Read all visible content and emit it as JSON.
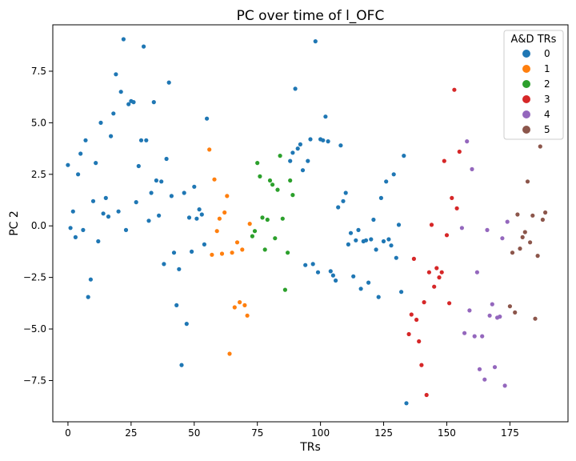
{
  "chart_data": {
    "type": "scatter",
    "title": "PC over time of l_OFC",
    "xlabel": "TRs",
    "ylabel": "PC 2",
    "xlim": [
      -6,
      198
    ],
    "ylim": [
      -9.5,
      9.75
    ],
    "xticks": [
      0,
      25,
      50,
      75,
      100,
      125,
      150,
      175
    ],
    "yticks": [
      -7.5,
      -5.0,
      -2.5,
      0.0,
      2.5,
      5.0,
      7.5
    ],
    "ytick_labels": [
      "−7.5",
      "−5.0",
      "−2.5",
      "0.0",
      "2.5",
      "5.0",
      "7.5"
    ],
    "grid": false,
    "legend": {
      "title": "A&D TRs",
      "location": "top-right",
      "entries": [
        "0",
        "1",
        "2",
        "3",
        "4",
        "5"
      ]
    },
    "series": [
      {
        "name": "0",
        "color": "#1f77b4",
        "points": [
          [
            0,
            2.95
          ],
          [
            1,
            -0.1
          ],
          [
            2,
            0.7
          ],
          [
            3,
            -0.55
          ],
          [
            4,
            2.5
          ],
          [
            5,
            3.5
          ],
          [
            6,
            -0.2
          ],
          [
            7,
            4.15
          ],
          [
            8,
            -3.45
          ],
          [
            9,
            -2.6
          ],
          [
            10,
            1.2
          ],
          [
            11,
            3.05
          ],
          [
            12,
            -0.75
          ],
          [
            13,
            5.0
          ],
          [
            14,
            0.6
          ],
          [
            15,
            1.35
          ],
          [
            16,
            0.45
          ],
          [
            17,
            4.35
          ],
          [
            18,
            5.45
          ],
          [
            19,
            7.35
          ],
          [
            20,
            0.7
          ],
          [
            21,
            6.5
          ],
          [
            22,
            9.05
          ],
          [
            23,
            -0.2
          ],
          [
            24,
            5.9
          ],
          [
            25,
            6.05
          ],
          [
            26,
            6.0
          ],
          [
            27,
            1.15
          ],
          [
            28,
            2.9
          ],
          [
            29,
            4.15
          ],
          [
            30,
            8.7
          ],
          [
            31,
            4.15
          ],
          [
            32,
            0.25
          ],
          [
            33,
            1.6
          ],
          [
            34,
            6.0
          ],
          [
            35,
            2.2
          ],
          [
            36,
            0.5
          ],
          [
            37,
            2.15
          ],
          [
            38,
            -1.85
          ],
          [
            39,
            3.25
          ],
          [
            40,
            6.95
          ],
          [
            41,
            1.45
          ],
          [
            42,
            -1.3
          ],
          [
            43,
            -3.85
          ],
          [
            44,
            -2.1
          ],
          [
            45,
            -6.75
          ],
          [
            46,
            1.6
          ],
          [
            47,
            -4.75
          ],
          [
            48,
            0.4
          ],
          [
            49,
            -1.25
          ],
          [
            50,
            1.9
          ],
          [
            51,
            0.35
          ],
          [
            52,
            0.8
          ],
          [
            53,
            0.55
          ],
          [
            54,
            -0.9
          ],
          [
            55,
            5.2
          ],
          [
            88,
            3.15
          ],
          [
            89,
            3.55
          ],
          [
            90,
            6.65
          ],
          [
            91,
            3.75
          ],
          [
            92,
            3.95
          ],
          [
            93,
            2.7
          ],
          [
            94,
            -1.9
          ],
          [
            95,
            3.15
          ],
          [
            96,
            4.2
          ],
          [
            97,
            -1.85
          ],
          [
            98,
            8.95
          ],
          [
            99,
            -2.25
          ],
          [
            100,
            4.2
          ],
          [
            101,
            4.15
          ],
          [
            102,
            5.3
          ],
          [
            103,
            4.1
          ],
          [
            104,
            -2.2
          ],
          [
            105,
            -2.4
          ],
          [
            106,
            -2.65
          ],
          [
            107,
            0.9
          ],
          [
            108,
            3.9
          ],
          [
            109,
            1.2
          ],
          [
            110,
            1.6
          ],
          [
            111,
            -0.9
          ],
          [
            112,
            -0.35
          ],
          [
            113,
            -2.45
          ],
          [
            114,
            -0.7
          ],
          [
            115,
            -0.2
          ],
          [
            116,
            -3.05
          ],
          [
            117,
            -0.75
          ],
          [
            118,
            -0.7
          ],
          [
            119,
            -2.75
          ],
          [
            120,
            -0.65
          ],
          [
            121,
            0.3
          ],
          [
            122,
            -1.15
          ],
          [
            123,
            -3.45
          ],
          [
            124,
            1.35
          ],
          [
            125,
            -0.75
          ],
          [
            126,
            2.15
          ],
          [
            127,
            -0.65
          ],
          [
            128,
            -0.95
          ],
          [
            129,
            2.5
          ],
          [
            130,
            -1.55
          ],
          [
            131,
            0.05
          ],
          [
            132,
            -3.2
          ],
          [
            133,
            3.4
          ],
          [
            134,
            -8.6
          ]
        ]
      },
      {
        "name": "1",
        "color": "#ff7f0e",
        "points": [
          [
            56,
            3.7
          ],
          [
            57,
            -1.4
          ],
          [
            58,
            2.25
          ],
          [
            59,
            -0.25
          ],
          [
            60,
            0.35
          ],
          [
            61,
            -1.35
          ],
          [
            62,
            0.65
          ],
          [
            63,
            1.45
          ],
          [
            64,
            -6.2
          ],
          [
            65,
            -1.3
          ],
          [
            66,
            -3.95
          ],
          [
            67,
            -0.8
          ],
          [
            68,
            -3.7
          ],
          [
            69,
            -1.15
          ],
          [
            70,
            -3.85
          ],
          [
            71,
            -4.35
          ],
          [
            72,
            0.1
          ]
        ]
      },
      {
        "name": "2",
        "color": "#2ca02c",
        "points": [
          [
            73,
            -0.5
          ],
          [
            74,
            -0.25
          ],
          [
            75,
            3.05
          ],
          [
            76,
            2.4
          ],
          [
            77,
            0.4
          ],
          [
            78,
            -1.15
          ],
          [
            79,
            0.3
          ],
          [
            80,
            2.2
          ],
          [
            81,
            2.0
          ],
          [
            82,
            -0.6
          ],
          [
            83,
            1.75
          ],
          [
            84,
            3.4
          ],
          [
            85,
            0.35
          ],
          [
            86,
            -3.1
          ],
          [
            87,
            -1.3
          ],
          [
            88,
            2.2
          ],
          [
            89,
            1.5
          ]
        ]
      },
      {
        "name": "3",
        "color": "#d62728",
        "points": [
          [
            135,
            -5.25
          ],
          [
            136,
            -4.3
          ],
          [
            137,
            -1.6
          ],
          [
            138,
            -4.55
          ],
          [
            139,
            -5.6
          ],
          [
            140,
            -6.75
          ],
          [
            141,
            -3.7
          ],
          [
            142,
            -8.2
          ],
          [
            143,
            -2.25
          ],
          [
            144,
            0.05
          ],
          [
            145,
            -2.95
          ],
          [
            146,
            -2.05
          ],
          [
            147,
            -2.5
          ],
          [
            148,
            -2.25
          ],
          [
            149,
            3.15
          ],
          [
            150,
            -0.45
          ],
          [
            151,
            -3.75
          ],
          [
            152,
            1.35
          ],
          [
            153,
            6.6
          ],
          [
            154,
            0.85
          ],
          [
            155,
            3.6
          ]
        ]
      },
      {
        "name": "4",
        "color": "#9467bd",
        "points": [
          [
            156,
            -0.1
          ],
          [
            157,
            -5.2
          ],
          [
            158,
            4.1
          ],
          [
            159,
            -4.1
          ],
          [
            160,
            2.75
          ],
          [
            161,
            -5.35
          ],
          [
            162,
            -2.25
          ],
          [
            163,
            -6.95
          ],
          [
            164,
            -5.35
          ],
          [
            165,
            -7.45
          ],
          [
            166,
            -0.2
          ],
          [
            167,
            -4.35
          ],
          [
            168,
            -3.8
          ],
          [
            169,
            -6.85
          ],
          [
            170,
            -4.45
          ],
          [
            171,
            -4.4
          ],
          [
            172,
            -0.6
          ],
          [
            173,
            -7.75
          ],
          [
            174,
            0.2
          ]
        ]
      },
      {
        "name": "5",
        "color": "#8c564b",
        "points": [
          [
            175,
            -3.9
          ],
          [
            176,
            -1.3
          ],
          [
            177,
            -4.2
          ],
          [
            178,
            0.55
          ],
          [
            179,
            -1.1
          ],
          [
            180,
            -0.55
          ],
          [
            181,
            -0.3
          ],
          [
            182,
            2.15
          ],
          [
            183,
            -0.8
          ],
          [
            184,
            0.5
          ],
          [
            185,
            -4.5
          ],
          [
            186,
            -1.45
          ],
          [
            187,
            3.85
          ],
          [
            188,
            0.3
          ],
          [
            189,
            0.65
          ]
        ]
      }
    ]
  }
}
